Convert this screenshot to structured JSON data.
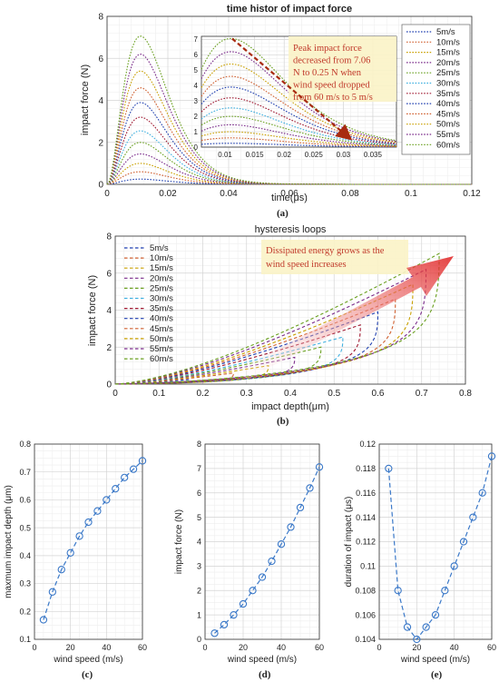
{
  "chart_data": [
    {
      "type": "line",
      "title": "time histor of impact force",
      "xlabel": "time(μs)",
      "ylabel": "impact force (N)",
      "xlim": [
        0,
        0.12
      ],
      "ylim": [
        0,
        8
      ],
      "xticks": [
        "0",
        "0.02",
        "0.04",
        "0.06",
        "0.08",
        "0.1",
        "0.12"
      ],
      "yticks": [
        "0",
        "2",
        "4",
        "6",
        "8"
      ],
      "grid": true,
      "legend_position": "top-right",
      "series": [
        {
          "name": "5m/s",
          "peak_time": 0.011,
          "peak": 0.25,
          "color": "#1f3fb0"
        },
        {
          "name": "10m/s",
          "peak_time": 0.011,
          "peak": 0.6,
          "color": "#d06030"
        },
        {
          "name": "15m/s",
          "peak_time": 0.011,
          "peak": 1.0,
          "color": "#c9a000"
        },
        {
          "name": "20m/s",
          "peak_time": 0.011,
          "peak": 1.45,
          "color": "#7a2a8a"
        },
        {
          "name": "25m/s",
          "peak_time": 0.011,
          "peak": 2.0,
          "color": "#6aa020"
        },
        {
          "name": "30m/s",
          "peak_time": 0.011,
          "peak": 2.55,
          "color": "#40b0e0"
        },
        {
          "name": "35m/s",
          "peak_time": 0.011,
          "peak": 3.2,
          "color": "#a01830"
        },
        {
          "name": "40m/s",
          "peak_time": 0.011,
          "peak": 3.9,
          "color": "#1f3fb0"
        },
        {
          "name": "45m/s",
          "peak_time": 0.011,
          "peak": 4.6,
          "color": "#d06030"
        },
        {
          "name": "50m/s",
          "peak_time": 0.011,
          "peak": 5.4,
          "color": "#c9a000"
        },
        {
          "name": "55m/s",
          "peak_time": 0.011,
          "peak": 6.2,
          "color": "#7a2a8a"
        },
        {
          "name": "60m/s",
          "peak_time": 0.011,
          "peak": 7.06,
          "color": "#6aa020"
        }
      ],
      "inset": {
        "xlim": [
          0.006,
          0.039
        ],
        "ylim": [
          0,
          7.2
        ],
        "xticks": [
          "0.01",
          "0.015",
          "0.02",
          "0.025",
          "0.03",
          "0.035"
        ],
        "yticks": [
          "0",
          "1",
          "2",
          "3",
          "4",
          "5",
          "6",
          "7"
        ],
        "annotation": [
          "Peak impact force",
          "decreased from 7.06",
          "N   to 0.25 N when",
          "wind speed dropped",
          "from 60 m/s to 5 m/s"
        ]
      },
      "panel_label": "(a)"
    },
    {
      "type": "line",
      "title": "hysteresis loops",
      "xlabel": "impact depth(μm)",
      "ylabel": "impact force (N)",
      "xlim": [
        0,
        0.8
      ],
      "ylim": [
        0,
        8
      ],
      "xticks": [
        "0",
        "0.1",
        "0.2",
        "0.3",
        "0.4",
        "0.5",
        "0.6",
        "0.7",
        "0.8"
      ],
      "yticks": [
        "0",
        "2",
        "4",
        "6",
        "8"
      ],
      "grid": true,
      "legend_position": "top-left",
      "series": [
        {
          "name": "5m/s",
          "max_depth": 0.17,
          "peak": 0.25,
          "color": "#1f3fb0"
        },
        {
          "name": "10m/s",
          "max_depth": 0.27,
          "peak": 0.6,
          "color": "#d06030"
        },
        {
          "name": "15m/s",
          "max_depth": 0.35,
          "peak": 1.0,
          "color": "#c9a000"
        },
        {
          "name": "20m/s",
          "max_depth": 0.41,
          "peak": 1.45,
          "color": "#7a2a8a"
        },
        {
          "name": "25m/s",
          "max_depth": 0.47,
          "peak": 2.0,
          "color": "#6aa020"
        },
        {
          "name": "30m/s",
          "max_depth": 0.52,
          "peak": 2.55,
          "color": "#40b0e0"
        },
        {
          "name": "35m/s",
          "max_depth": 0.56,
          "peak": 3.2,
          "color": "#a01830"
        },
        {
          "name": "40m/s",
          "max_depth": 0.6,
          "peak": 3.9,
          "color": "#1f3fb0"
        },
        {
          "name": "45m/s",
          "max_depth": 0.64,
          "peak": 4.6,
          "color": "#d06030"
        },
        {
          "name": "50m/s",
          "max_depth": 0.68,
          "peak": 5.4,
          "color": "#c9a000"
        },
        {
          "name": "55m/s",
          "max_depth": 0.71,
          "peak": 6.2,
          "color": "#7a2a8a"
        },
        {
          "name": "60m/s",
          "max_depth": 0.74,
          "peak": 7.06,
          "color": "#6aa020"
        }
      ],
      "annotation": [
        "Dissipated energy grows as the",
        "wind speed increases"
      ],
      "panel_label": "(b)"
    },
    {
      "type": "line",
      "xlabel": "wind speed (m/s)",
      "ylabel": "maxmum impact depth (μm)",
      "xlim": [
        0,
        60
      ],
      "ylim": [
        0.1,
        0.8
      ],
      "xticks": [
        "0",
        "20",
        "40",
        "60"
      ],
      "yticks": [
        "0.1",
        "0.2",
        "0.3",
        "0.4",
        "0.5",
        "0.6",
        "0.7",
        "0.8"
      ],
      "x": [
        5,
        10,
        15,
        20,
        25,
        30,
        35,
        40,
        45,
        50,
        55,
        60
      ],
      "y": [
        0.17,
        0.27,
        0.35,
        0.41,
        0.47,
        0.52,
        0.56,
        0.6,
        0.64,
        0.68,
        0.71,
        0.74
      ],
      "color": "#3a78c8",
      "grid": true,
      "panel_label": "(c)"
    },
    {
      "type": "line",
      "xlabel": "wind speed (m/s)",
      "ylabel": "impact force (N)",
      "xlim": [
        0,
        60
      ],
      "ylim": [
        0,
        8
      ],
      "xticks": [
        "0",
        "20",
        "40",
        "60"
      ],
      "yticks": [
        "0",
        "1",
        "2",
        "3",
        "4",
        "5",
        "6",
        "7",
        "8"
      ],
      "x": [
        5,
        10,
        15,
        20,
        25,
        30,
        35,
        40,
        45,
        50,
        55,
        60
      ],
      "y": [
        0.25,
        0.6,
        1.0,
        1.45,
        2.0,
        2.55,
        3.2,
        3.9,
        4.6,
        5.4,
        6.2,
        7.06
      ],
      "color": "#3a78c8",
      "grid": true,
      "panel_label": "(d)"
    },
    {
      "type": "line",
      "xlabel": "wind speed (m/s)",
      "ylabel": "duration of impact (μs)",
      "xlim": [
        0,
        60
      ],
      "ylim": [
        0.104,
        0.12
      ],
      "xticks": [
        "0",
        "20",
        "40",
        "60"
      ],
      "yticks": [
        "0.104",
        "0.106",
        "0.108",
        "0.11",
        "0.112",
        "0.114",
        "0.116",
        "0.118",
        "0.12"
      ],
      "x": [
        5,
        10,
        15,
        20,
        25,
        30,
        35,
        40,
        45,
        50,
        55,
        60
      ],
      "y": [
        0.118,
        0.108,
        0.105,
        0.104,
        0.105,
        0.106,
        0.108,
        0.11,
        0.112,
        0.114,
        0.116,
        0.119
      ],
      "color": "#3a78c8",
      "grid": true,
      "panel_label": "(e)"
    }
  ]
}
